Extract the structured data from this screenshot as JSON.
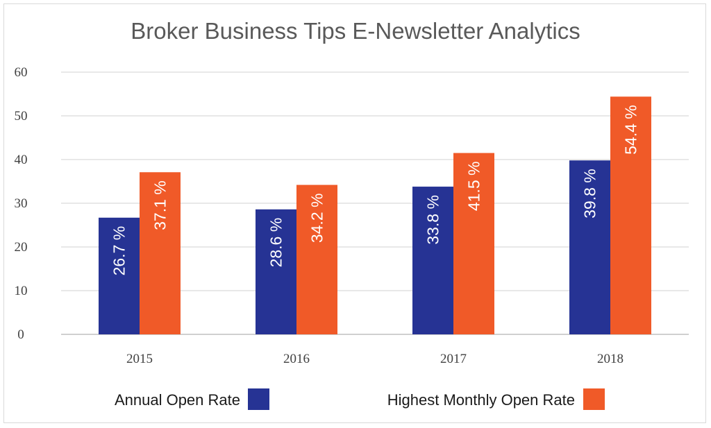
{
  "chart_data": {
    "type": "bar",
    "title": "Broker Business Tips E-Newsletter Analytics",
    "categories": [
      "2015",
      "2016",
      "2017",
      "2018"
    ],
    "series": [
      {
        "name": "Annual Open Rate",
        "color": "#263394",
        "values": [
          26.7,
          28.6,
          33.8,
          39.8
        ],
        "labels": [
          "26.7 %",
          "28.6 %",
          "33.8 %",
          "39.8 %"
        ]
      },
      {
        "name": "Highest Monthly Open Rate",
        "color": "#f05a28",
        "values": [
          37.1,
          34.2,
          41.5,
          54.4
        ],
        "labels": [
          "37.1 %",
          "34.2 %",
          "41.5 %",
          "54.4 %"
        ]
      }
    ],
    "ylim": [
      0,
      60
    ],
    "yticks": [
      "0",
      "10",
      "20",
      "30",
      "40",
      "50",
      "60"
    ],
    "grid": true,
    "legend": "bottom"
  }
}
